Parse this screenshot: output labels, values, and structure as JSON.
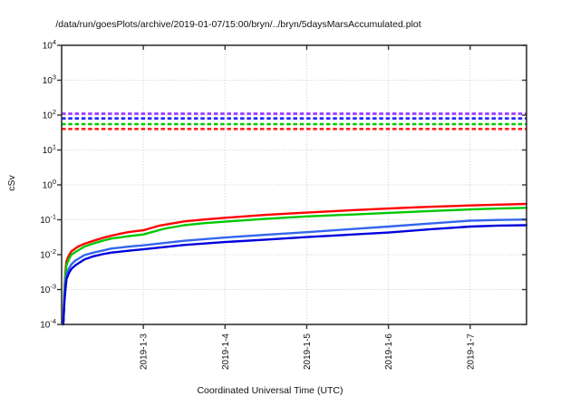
{
  "chart_data": {
    "type": "line",
    "title": "/data/run/goesPlots/archive/2019-01-07/15:00/bryn/../bryn/5daysMarsAccumulated.plot",
    "xlabel": "Coordinated Universal Time (UTC)",
    "ylabel": "cSv",
    "x_axis": {
      "scale": "time",
      "range_days": [
        0,
        5.69
      ],
      "ticks": [
        {
          "day": 1,
          "label": "2019-1-3"
        },
        {
          "day": 2,
          "label": "2019-1-4"
        },
        {
          "day": 3,
          "label": "2019-1-5"
        },
        {
          "day": 4,
          "label": "2019-1-6"
        },
        {
          "day": 5,
          "label": "2019-1-7"
        }
      ]
    },
    "y_axis": {
      "scale": "log10",
      "min": 0.0001,
      "max": 10000,
      "tick_exponents": [
        4,
        3,
        2,
        1,
        0,
        -1,
        -2,
        -3,
        -4
      ]
    },
    "grid": {
      "major": true,
      "style": "dotted",
      "color": "#c9c9c9"
    },
    "legend": "none",
    "limit_lines": [
      {
        "name": "limit-purple",
        "value": 110,
        "color": "#9933ff"
      },
      {
        "name": "limit-blue",
        "value": 80,
        "color": "#2222ff"
      },
      {
        "name": "limit-green",
        "value": 55,
        "color": "#00c800"
      },
      {
        "name": "limit-red",
        "value": 40,
        "color": "#ff2222"
      }
    ],
    "series": [
      {
        "name": "accumulated-red",
        "color": "#ff0000",
        "points": [
          [
            0.02,
            0.0001
          ],
          [
            0.035,
            0.0012
          ],
          [
            0.05,
            0.004
          ],
          [
            0.06,
            0.0065
          ],
          [
            0.08,
            0.0085
          ],
          [
            0.1,
            0.0105
          ],
          [
            0.12,
            0.0125
          ],
          [
            0.15,
            0.014
          ],
          [
            0.2,
            0.017
          ],
          [
            0.28,
            0.0205
          ],
          [
            0.39,
            0.025
          ],
          [
            0.5,
            0.03
          ],
          [
            0.61,
            0.035
          ],
          [
            0.72,
            0.04
          ],
          [
            0.83,
            0.045
          ],
          [
            1.0,
            0.05
          ],
          [
            1.2,
            0.068
          ],
          [
            1.5,
            0.09
          ],
          [
            1.75,
            0.102
          ],
          [
            2.0,
            0.114
          ],
          [
            2.5,
            0.138
          ],
          [
            3.0,
            0.16
          ],
          [
            3.5,
            0.185
          ],
          [
            4.0,
            0.21
          ],
          [
            4.5,
            0.235
          ],
          [
            5.0,
            0.258
          ],
          [
            5.35,
            0.272
          ],
          [
            5.69,
            0.285
          ]
        ]
      },
      {
        "name": "accumulated-green",
        "color": "#00c800",
        "points": [
          [
            0.02,
            0.0001
          ],
          [
            0.035,
            0.001
          ],
          [
            0.05,
            0.003
          ],
          [
            0.06,
            0.005
          ],
          [
            0.09,
            0.0075
          ],
          [
            0.12,
            0.01
          ],
          [
            0.17,
            0.012
          ],
          [
            0.28,
            0.017
          ],
          [
            0.39,
            0.021
          ],
          [
            0.5,
            0.025
          ],
          [
            0.61,
            0.029
          ],
          [
            0.83,
            0.034
          ],
          [
            1.0,
            0.038
          ],
          [
            1.25,
            0.055
          ],
          [
            1.5,
            0.07
          ],
          [
            1.75,
            0.08
          ],
          [
            2.0,
            0.088
          ],
          [
            2.5,
            0.107
          ],
          [
            3.0,
            0.125
          ],
          [
            3.5,
            0.14
          ],
          [
            4.0,
            0.158
          ],
          [
            4.5,
            0.178
          ],
          [
            5.0,
            0.198
          ],
          [
            5.35,
            0.21
          ],
          [
            5.69,
            0.22
          ]
        ]
      },
      {
        "name": "accumulated-light-blue",
        "color": "#3366ee",
        "points": [
          [
            0.02,
            0.0001
          ],
          [
            0.035,
            0.0006
          ],
          [
            0.05,
            0.0016
          ],
          [
            0.06,
            0.0027
          ],
          [
            0.09,
            0.004
          ],
          [
            0.12,
            0.0053
          ],
          [
            0.17,
            0.0068
          ],
          [
            0.28,
            0.0097
          ],
          [
            0.39,
            0.0115
          ],
          [
            0.5,
            0.013
          ],
          [
            0.61,
            0.015
          ],
          [
            0.83,
            0.017
          ],
          [
            1.0,
            0.0185
          ],
          [
            1.5,
            0.025
          ],
          [
            2.0,
            0.031
          ],
          [
            2.5,
            0.037
          ],
          [
            3.0,
            0.044
          ],
          [
            3.5,
            0.053
          ],
          [
            4.0,
            0.064
          ],
          [
            4.5,
            0.078
          ],
          [
            5.0,
            0.094
          ],
          [
            5.35,
            0.099
          ],
          [
            5.69,
            0.102
          ]
        ]
      },
      {
        "name": "accumulated-dark-blue",
        "color": "#0000dd",
        "points": [
          [
            0.02,
            0.0001
          ],
          [
            0.035,
            0.0005
          ],
          [
            0.05,
            0.0012
          ],
          [
            0.06,
            0.002
          ],
          [
            0.09,
            0.003
          ],
          [
            0.12,
            0.0039
          ],
          [
            0.17,
            0.005
          ],
          [
            0.28,
            0.0073
          ],
          [
            0.39,
            0.009
          ],
          [
            0.5,
            0.0103
          ],
          [
            0.61,
            0.0115
          ],
          [
            0.83,
            0.013
          ],
          [
            1.0,
            0.0142
          ],
          [
            1.5,
            0.019
          ],
          [
            2.0,
            0.023
          ],
          [
            2.5,
            0.027
          ],
          [
            3.0,
            0.032
          ],
          [
            3.5,
            0.037
          ],
          [
            4.0,
            0.043
          ],
          [
            4.5,
            0.053
          ],
          [
            5.0,
            0.064
          ],
          [
            5.35,
            0.068
          ],
          [
            5.69,
            0.07
          ]
        ]
      }
    ]
  }
}
